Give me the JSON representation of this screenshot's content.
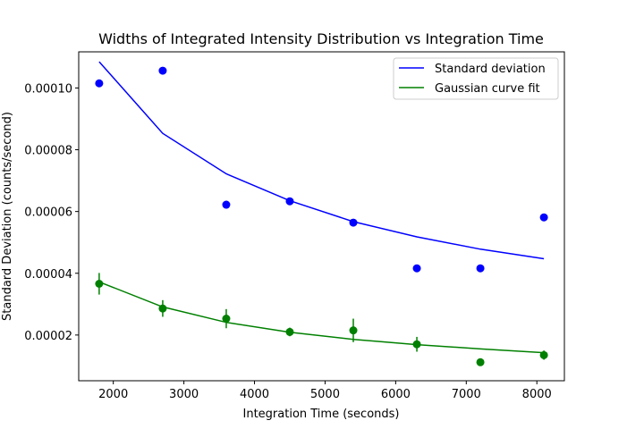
{
  "chart_data": {
    "type": "scatter",
    "title": "Widths of Integrated Intensity Distribution vs Integration Time",
    "xlabel": "Integration Time (seconds)",
    "ylabel": "Standard Deviation (counts/second)",
    "xlim": [
      1510,
      8390
    ],
    "ylim": [
      5.2e-06,
      0.0001117
    ],
    "xticks": [
      2000,
      3000,
      4000,
      5000,
      6000,
      7000,
      8000
    ],
    "xtick_labels": [
      "2000",
      "3000",
      "4000",
      "5000",
      "6000",
      "7000",
      "8000"
    ],
    "yticks": [
      2e-05,
      4e-05,
      6e-05,
      8e-05,
      0.0001
    ],
    "ytick_labels": [
      "0.00002",
      "0.00004",
      "0.00006",
      "0.00008",
      "0.00010"
    ],
    "grid": false,
    "legend_position": "top-right",
    "series": [
      {
        "name": "Standard deviation",
        "color": "#0000ff",
        "line_x": [
          1800,
          2700,
          3600,
          4500,
          5400,
          6300,
          7200,
          8100
        ],
        "line_y": [
          0.0001085,
          8.53e-05,
          7.22e-05,
          6.35e-05,
          5.67e-05,
          5.18e-05,
          4.78e-05,
          4.47e-05
        ],
        "points_x": [
          1800,
          2700,
          3600,
          4500,
          5400,
          6300,
          7200,
          8100
        ],
        "points_y": [
          0.0001015,
          0.0001056,
          6.22e-05,
          6.33e-05,
          5.64e-05,
          4.16e-05,
          4.16e-05,
          5.81e-05
        ]
      },
      {
        "name": "Gaussian curve fit",
        "color": "#008000",
        "line_x": [
          1800,
          2700,
          3600,
          4500,
          5400,
          6300,
          7200,
          8100
        ],
        "line_y": [
          3.72e-05,
          2.91e-05,
          2.41e-05,
          2.09e-05,
          1.86e-05,
          1.69e-05,
          1.55e-05,
          1.43e-05
        ],
        "points_x": [
          1800,
          2700,
          3600,
          4500,
          5400,
          6300,
          7200,
          8100
        ],
        "points_y": [
          3.66e-05,
          2.86e-05,
          2.53e-05,
          2.1e-05,
          2.15e-05,
          1.7e-05,
          1.12e-05,
          1.35e-05
        ],
        "errors": [
          3.5e-06,
          2.7e-06,
          3.1e-06,
          1.4e-06,
          3.8e-06,
          2.4e-06,
          6e-07,
          1.5e-06
        ]
      }
    ]
  }
}
